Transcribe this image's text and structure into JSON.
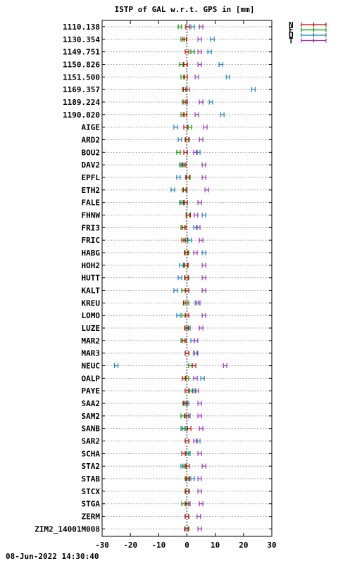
{
  "chart_data": {
    "type": "scatter",
    "title": "ISTP of GAL w.r.t. GPS in [mm]",
    "timestamp": "08-Jun-2022 14:30:40",
    "xlim": [
      -30,
      30
    ],
    "xticks": [
      -30,
      -20,
      -10,
      0,
      10,
      20,
      30
    ],
    "grid": true,
    "legend_position": "top-right",
    "stations": [
      "1110.138",
      "1130.354",
      "1149.751",
      "1150.826",
      "1151.500",
      "1169.357",
      "1189.224",
      "1190.020",
      "AIGE",
      "ARD2",
      "BOU2",
      "DAV2",
      "EPFL",
      "ETH2",
      "FALE",
      "FHNW",
      "FRI3",
      "FRIC",
      "HABG",
      "HOH2",
      "HUTT",
      "KALT",
      "KREU",
      "LOMO",
      "LUZE",
      "MAR2",
      "MAR3",
      "NEUC",
      "OALP",
      "PAYE",
      "SAA2",
      "SAM2",
      "SANB",
      "SAR2",
      "SCHA",
      "STA2",
      "STAB",
      "STCX",
      "STGA",
      "ZERM",
      "ZIM2_14001M008"
    ],
    "series": [
      {
        "name": "N",
        "color": "#cc0000",
        "values": [
          0.2,
          -0.8,
          0,
          -0.5,
          -0.5,
          -0.6,
          -0.5,
          -0.7,
          -0.5,
          0,
          -0.5,
          -1,
          0.2,
          -0.6,
          -0.5,
          0.6,
          -1,
          -1.2,
          -0.3,
          -0.2,
          -0.2,
          0,
          -0.6,
          0,
          -0.2,
          -1,
          0,
          2.5,
          -1,
          0,
          -0.5,
          0,
          0.8,
          0,
          -1.2,
          0.2,
          0.3,
          0,
          0,
          0,
          -0.2
        ]
      },
      {
        "name": "E",
        "color": "#009900",
        "values": [
          -2.5,
          -1.5,
          2,
          -2,
          -1.5,
          -1,
          -1,
          -1.5,
          1,
          0.2,
          -3,
          -1.5,
          0.5,
          -1,
          -1.5,
          0.3,
          -1.5,
          -0.5,
          0,
          -0.5,
          0,
          -1.2,
          0,
          -1.2,
          0,
          -1.5,
          0,
          1.2,
          0,
          1.5,
          -0.8,
          -1.5,
          -1,
          0,
          0,
          -0.8,
          0,
          0.2,
          -1.2,
          0,
          0
        ]
      },
      {
        "name": "U",
        "color": "#1a7fc0",
        "values": [
          2,
          9,
          8,
          12,
          14.5,
          23.5,
          8.5,
          12.5,
          -4,
          -2.5,
          4,
          -2,
          -3,
          -5,
          -2,
          6,
          3,
          1,
          6,
          -2,
          -2.5,
          -4,
          3.5,
          -3,
          0.5,
          2,
          3,
          -25,
          5.5,
          2.5,
          0,
          0.5,
          -1.5,
          4,
          0.5,
          -1.5,
          2,
          0,
          0.5,
          0,
          0
        ]
      },
      {
        "name": "T",
        "color": "#9933bb",
        "values": [
          5,
          4.5,
          4.5,
          4.5,
          3.5,
          0.2,
          5,
          3.5,
          6.5,
          5,
          3,
          6,
          6,
          7,
          4.5,
          3.2,
          4,
          5,
          3,
          6,
          6,
          6,
          4,
          6,
          5,
          3.2,
          3.2,
          13.5,
          3,
          3.5,
          4.5,
          4.5,
          5,
          3,
          4.5,
          6,
          4.5,
          4.5,
          5,
          4.2,
          4.5
        ]
      }
    ]
  }
}
